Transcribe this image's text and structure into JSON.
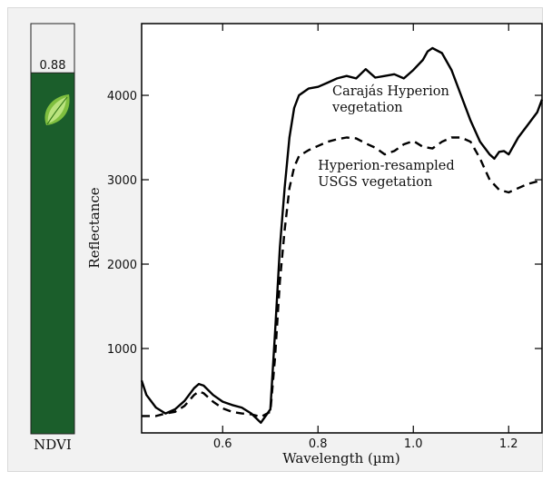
{
  "ndvi_panel": {
    "label": "NDVI",
    "value": "0.88",
    "value_fraction": 0.88,
    "fill_color": "#1b5e2b",
    "empty_color": "#f0f0f0",
    "icon": "leaf-icon"
  },
  "chart_data": {
    "type": "line",
    "title": "",
    "xlabel": "Wavelength (µm)",
    "ylabel": "Reflectance",
    "xlim": [
      0.43,
      1.27
    ],
    "ylim": [
      0,
      4850
    ],
    "xticks": [
      0.6,
      0.8,
      1.0,
      1.2
    ],
    "xtick_labels": [
      "0.6",
      "0.8",
      "1.0",
      "1.2"
    ],
    "yticks": [
      1000,
      2000,
      3000,
      4000
    ],
    "ytick_labels": [
      "1000",
      "2000",
      "3000",
      "4000"
    ],
    "grid": false,
    "series": [
      {
        "name": "Carajás Hyperion vegetation",
        "style": "solid",
        "color": "#000000",
        "x": [
          0.43,
          0.44,
          0.46,
          0.48,
          0.5,
          0.52,
          0.54,
          0.55,
          0.56,
          0.58,
          0.6,
          0.62,
          0.64,
          0.66,
          0.68,
          0.7,
          0.71,
          0.72,
          0.73,
          0.74,
          0.75,
          0.76,
          0.78,
          0.8,
          0.82,
          0.84,
          0.86,
          0.88,
          0.9,
          0.92,
          0.94,
          0.96,
          0.98,
          1.0,
          1.02,
          1.03,
          1.04,
          1.06,
          1.08,
          1.1,
          1.12,
          1.14,
          1.16,
          1.17,
          1.18,
          1.19,
          1.2,
          1.22,
          1.24,
          1.26,
          1.27
        ],
        "y": [
          620,
          450,
          300,
          230,
          280,
          380,
          530,
          580,
          560,
          450,
          370,
          330,
          300,
          230,
          120,
          280,
          1200,
          2200,
          2900,
          3500,
          3850,
          4000,
          4080,
          4100,
          4150,
          4200,
          4230,
          4200,
          4310,
          4210,
          4230,
          4250,
          4200,
          4300,
          4420,
          4520,
          4560,
          4500,
          4300,
          4000,
          3700,
          3450,
          3300,
          3250,
          3330,
          3340,
          3300,
          3500,
          3650,
          3800,
          3950
        ]
      },
      {
        "name": "Hyperion-resampled USGS vegetation",
        "style": "dashed",
        "color": "#000000",
        "x": [
          0.43,
          0.46,
          0.48,
          0.5,
          0.52,
          0.54,
          0.55,
          0.56,
          0.58,
          0.6,
          0.62,
          0.64,
          0.66,
          0.68,
          0.7,
          0.71,
          0.72,
          0.73,
          0.74,
          0.75,
          0.76,
          0.78,
          0.8,
          0.82,
          0.84,
          0.86,
          0.88,
          0.9,
          0.92,
          0.94,
          0.96,
          0.98,
          1.0,
          1.02,
          1.04,
          1.06,
          1.08,
          1.1,
          1.12,
          1.14,
          1.16,
          1.18,
          1.2,
          1.22,
          1.24,
          1.26,
          1.27
        ],
        "y": [
          200,
          200,
          230,
          250,
          320,
          450,
          490,
          470,
          370,
          290,
          250,
          230,
          220,
          190,
          250,
          900,
          1800,
          2400,
          2900,
          3150,
          3280,
          3350,
          3400,
          3450,
          3480,
          3500,
          3490,
          3430,
          3380,
          3300,
          3340,
          3420,
          3460,
          3390,
          3370,
          3450,
          3500,
          3500,
          3450,
          3250,
          3000,
          2880,
          2850,
          2900,
          2950,
          2980,
          3000
        ]
      }
    ],
    "annotations": [
      {
        "lines": [
          "Carajás Hyperion",
          "vegetation"
        ],
        "x": 0.83,
        "y": 4000
      },
      {
        "lines": [
          "Hyperion-resampled",
          "USGS vegetation"
        ],
        "x": 0.8,
        "y": 3120
      }
    ]
  }
}
